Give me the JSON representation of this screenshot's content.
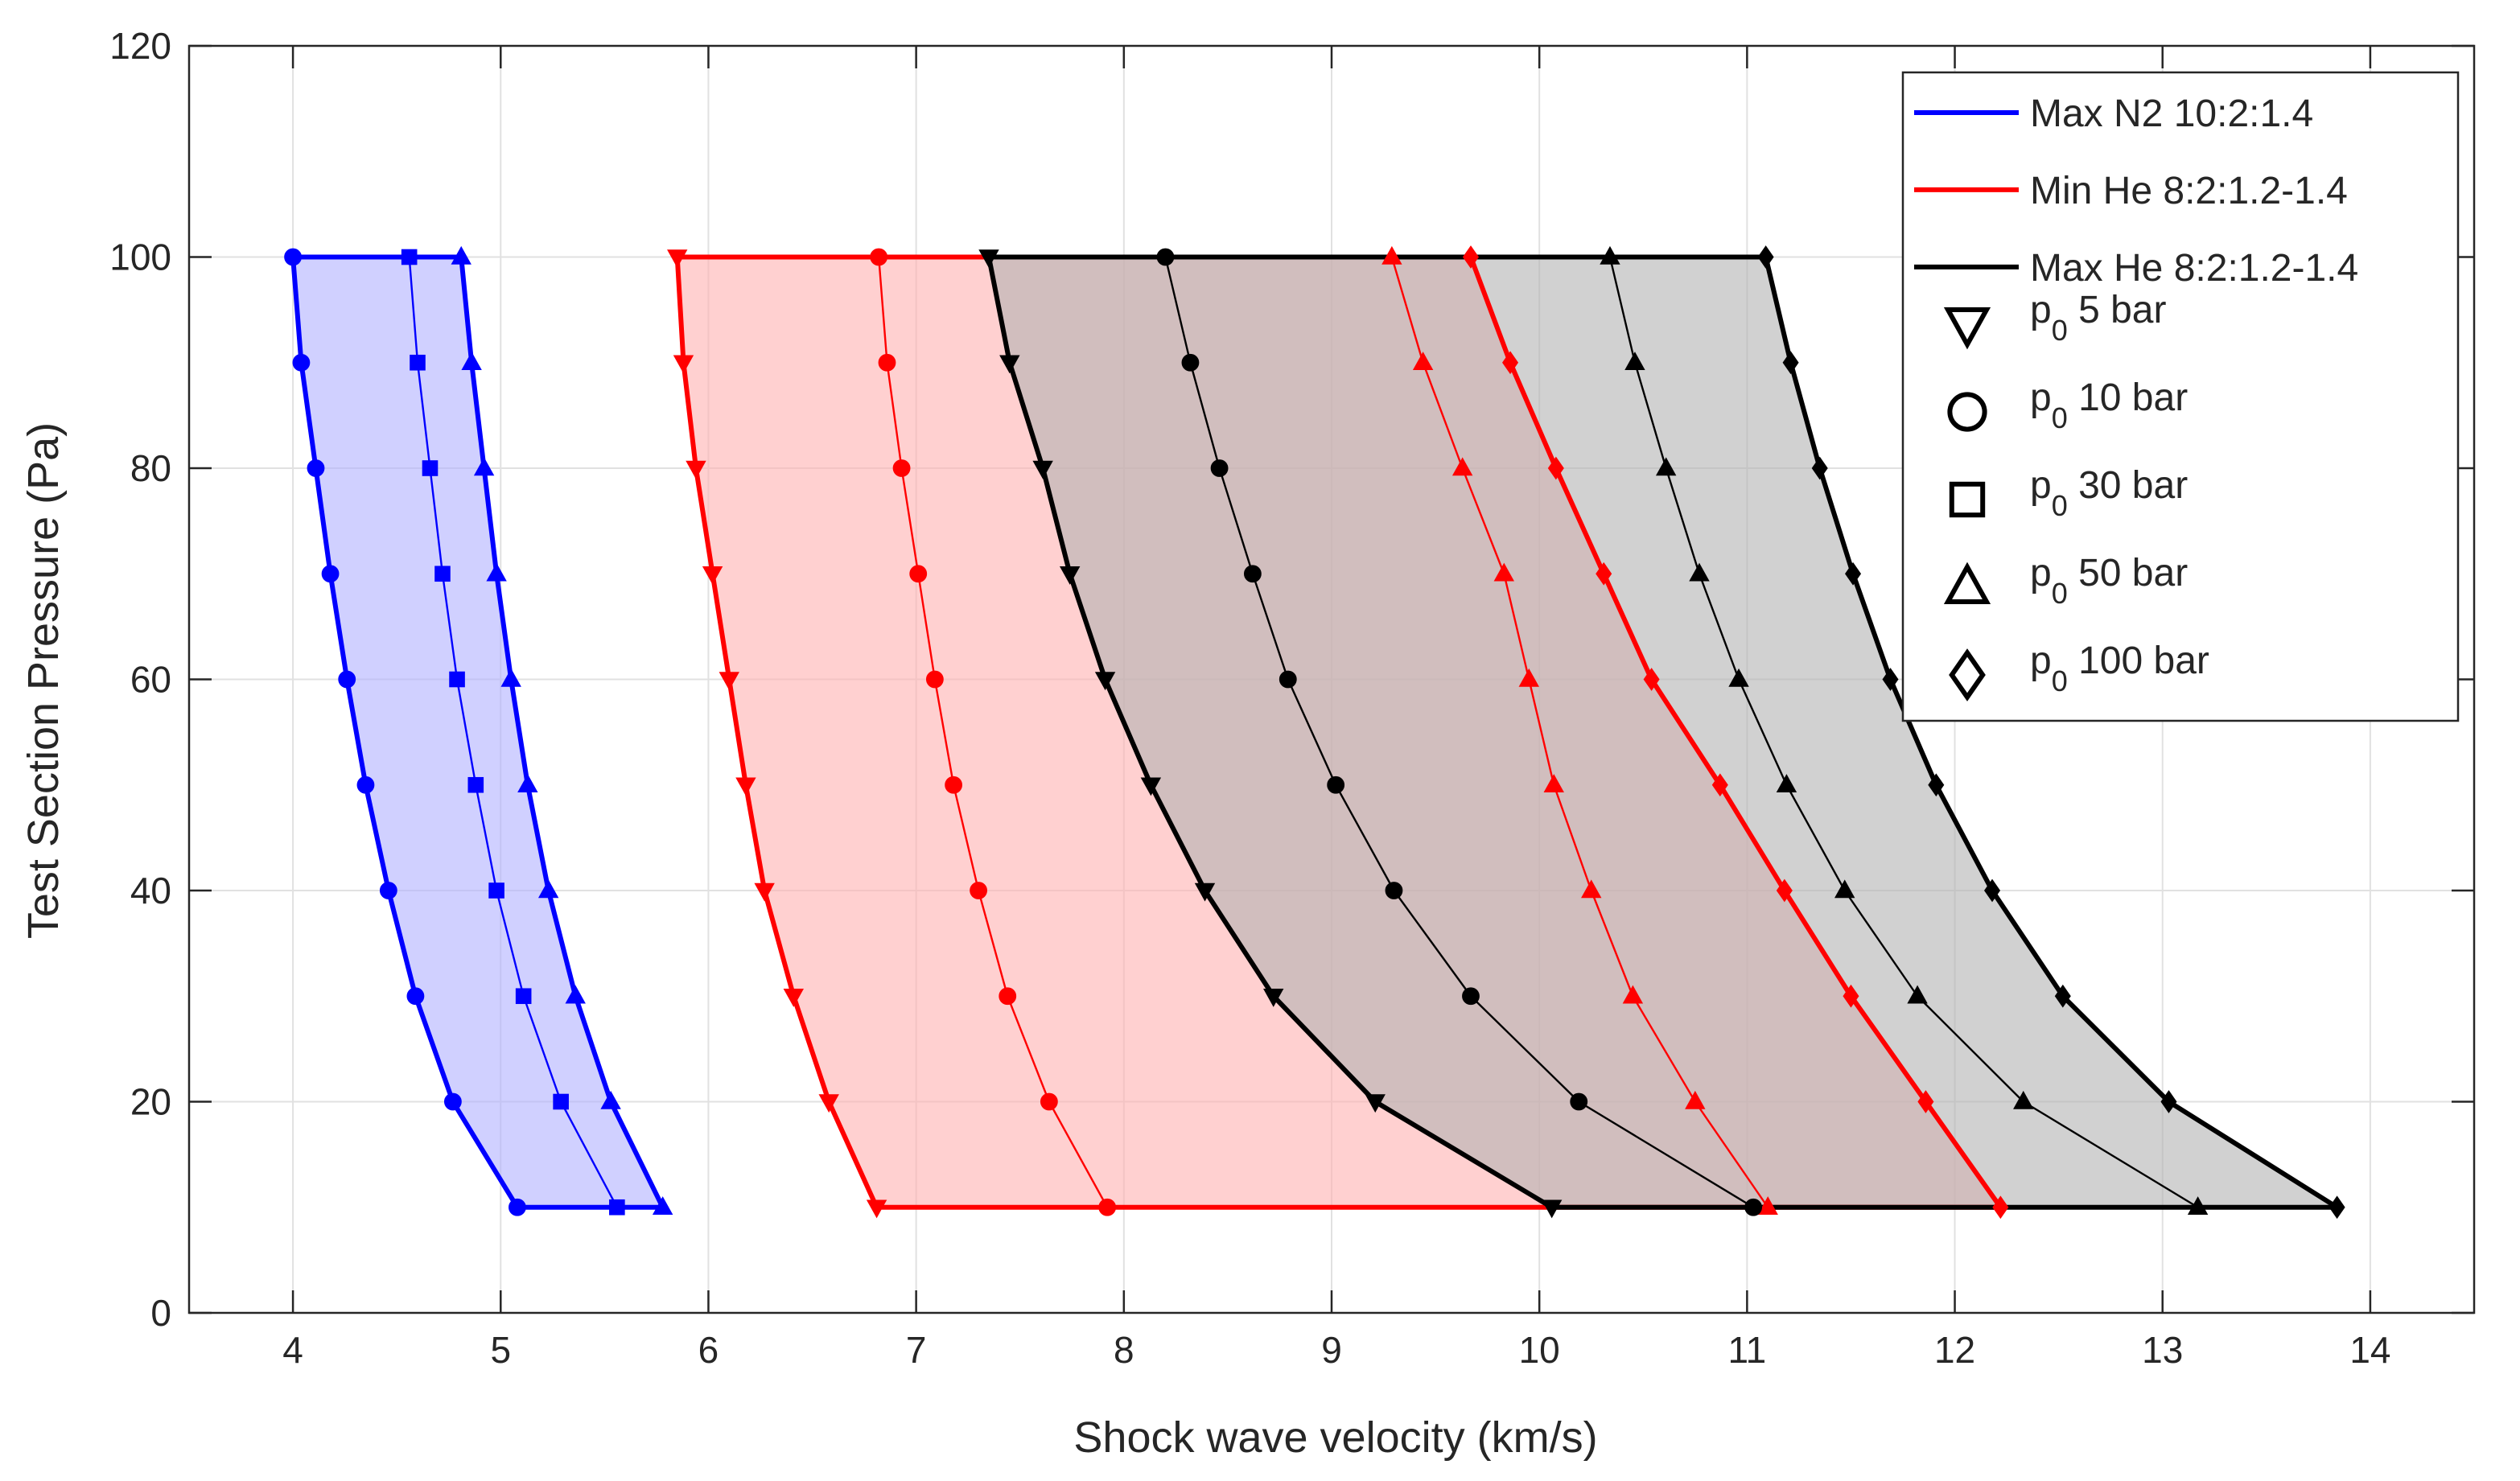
{
  "chart_data": {
    "type": "line",
    "title": "",
    "xlabel": "Shock wave velocity (km/s)",
    "ylabel": "Test Section Pressure (Pa)",
    "xlim": [
      3.5,
      14.5
    ],
    "ylim": [
      0,
      120
    ],
    "xticks": [
      4,
      5,
      6,
      7,
      8,
      9,
      10,
      11,
      12,
      13,
      14
    ],
    "yticks": [
      0,
      20,
      40,
      60,
      80,
      100,
      120
    ],
    "grid": true,
    "legend_position": "top-right",
    "y": [
      100,
      90,
      80,
      70,
      60,
      50,
      40,
      30,
      20,
      10
    ],
    "groups": [
      {
        "name": "Max N2 10:2:1.4",
        "color": "#0000ff",
        "fill": "#b0b0ff",
        "series": [
          {
            "p0": "10 bar",
            "marker": "circle",
            "x": [
              4.0,
              4.04,
              4.11,
              4.18,
              4.26,
              4.35,
              4.46,
              4.59,
              4.77,
              5.08
            ],
            "boundary": "left"
          },
          {
            "p0": "30 bar",
            "marker": "square",
            "x": [
              4.56,
              4.6,
              4.66,
              4.72,
              4.79,
              4.88,
              4.98,
              5.11,
              5.29,
              5.56
            ]
          },
          {
            "p0": "50 bar",
            "marker": "triangle-up",
            "x": [
              4.81,
              4.86,
              4.92,
              4.98,
              5.05,
              5.13,
              5.23,
              5.36,
              5.53,
              5.78
            ],
            "boundary": "right"
          }
        ]
      },
      {
        "name": "Min He 8:2:1.2-1.4",
        "color": "#ff0000",
        "fill": "#ffb0b0",
        "series": [
          {
            "p0": "5 bar",
            "marker": "triangle-down",
            "x": [
              5.85,
              5.88,
              5.94,
              6.02,
              6.1,
              6.18,
              6.27,
              6.41,
              6.58,
              6.81
            ],
            "boundary": "left"
          },
          {
            "p0": "10 bar",
            "marker": "circle",
            "x": [
              6.82,
              6.86,
              6.93,
              7.01,
              7.09,
              7.18,
              7.3,
              7.44,
              7.64,
              7.92
            ]
          },
          {
            "p0": "50 bar",
            "marker": "triangle-up",
            "x": [
              9.29,
              9.44,
              9.63,
              9.83,
              9.95,
              10.07,
              10.25,
              10.45,
              10.75,
              11.1
            ]
          },
          {
            "p0": "100 bar",
            "marker": "diamond",
            "x": [
              9.67,
              9.86,
              10.08,
              10.31,
              10.54,
              10.87,
              11.18,
              11.5,
              11.86,
              12.22
            ],
            "boundary": "right"
          }
        ]
      },
      {
        "name": "Max He 8:2:1.2-1.4",
        "color": "#000000",
        "fill": "#b2b2b2",
        "series": [
          {
            "p0": "5 bar",
            "marker": "triangle-down",
            "x": [
              7.35,
              7.45,
              7.61,
              7.74,
              7.91,
              8.13,
              8.39,
              8.72,
              9.21,
              10.06
            ],
            "boundary": "left"
          },
          {
            "p0": "10 bar",
            "marker": "circle",
            "x": [
              8.2,
              8.32,
              8.46,
              8.62,
              8.79,
              9.02,
              9.3,
              9.67,
              10.19,
              11.03
            ]
          },
          {
            "p0": "50 bar",
            "marker": "triangle-up",
            "x": [
              10.34,
              10.46,
              10.61,
              10.77,
              10.96,
              11.19,
              11.47,
              11.82,
              12.33,
              13.17
            ]
          },
          {
            "p0": "100 bar",
            "marker": "diamond",
            "x": [
              11.09,
              11.21,
              11.35,
              11.51,
              11.69,
              11.91,
              12.18,
              12.52,
              13.03,
              13.84
            ],
            "boundary": "right"
          }
        ]
      }
    ],
    "legend": {
      "lines": [
        {
          "label": "Max N2 10:2:1.4",
          "color": "#0000ff"
        },
        {
          "label": "Min He 8:2:1.2-1.4",
          "color": "#ff0000"
        },
        {
          "label": "Max He 8:2:1.2-1.4",
          "color": "#000000"
        }
      ],
      "markers": [
        {
          "base": "p",
          "sub": "0",
          "rest": " 5 bar",
          "marker": "triangle-down"
        },
        {
          "base": "p",
          "sub": "0",
          "rest": " 10 bar",
          "marker": "circle"
        },
        {
          "base": "p",
          "sub": "0",
          "rest": " 30 bar",
          "marker": "square"
        },
        {
          "base": "p",
          "sub": "0",
          "rest": " 50 bar",
          "marker": "triangle-up"
        },
        {
          "base": "p",
          "sub": "0",
          "rest": " 100 bar",
          "marker": "diamond"
        }
      ]
    }
  }
}
